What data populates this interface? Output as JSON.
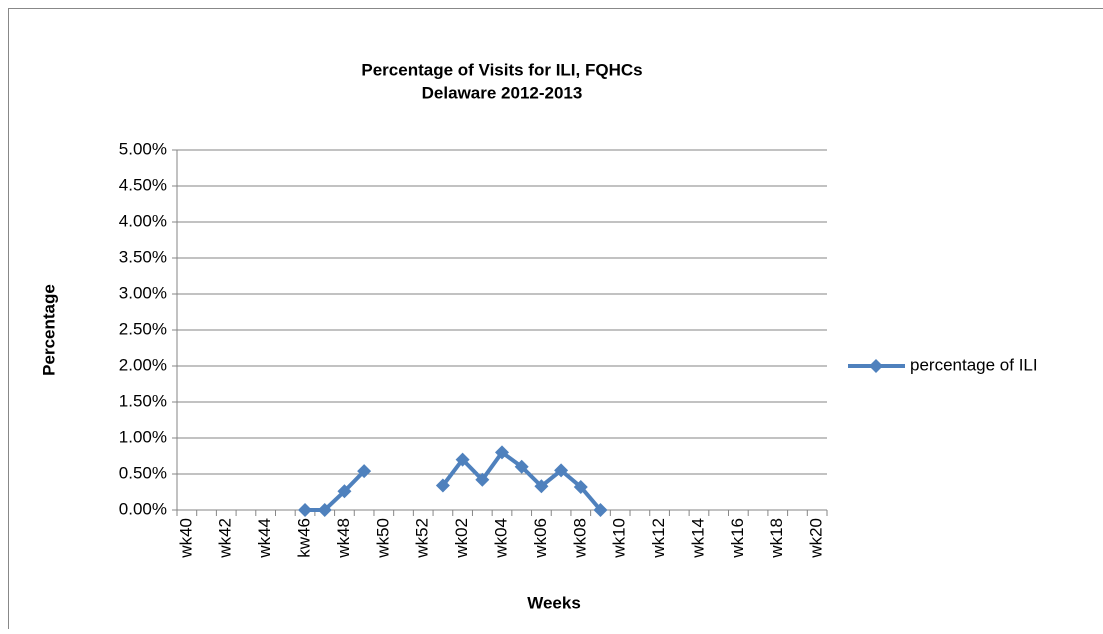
{
  "chart_data": {
    "type": "line",
    "title": "Percentage of Visits for ILI, FQHCs",
    "subtitle": "Delaware 2012-2013",
    "y_label": "Percentage",
    "x_label": "Weeks",
    "categories": [
      "wk40",
      null,
      "wk42",
      null,
      "wk44",
      null,
      "kw46",
      null,
      "wk48",
      null,
      "wk50",
      null,
      "wk52",
      null,
      "wk02",
      null,
      "wk04",
      null,
      "wk06",
      null,
      "wk08",
      null,
      "wk10",
      null,
      "wk12",
      null,
      "wk14",
      null,
      "wk16",
      null,
      "wk18",
      null,
      "wk20"
    ],
    "series": [
      {
        "name": "percentage of ILI",
        "color": "#4f81bd",
        "values": [
          null,
          null,
          null,
          null,
          null,
          null,
          0,
          0,
          0.26,
          0.54,
          null,
          null,
          null,
          0.34,
          0.7,
          0.42,
          0.8,
          0.6,
          0.33,
          0.55,
          0.32,
          0,
          null,
          null,
          null,
          null,
          null,
          null,
          null,
          null,
          null,
          null,
          null
        ]
      }
    ],
    "ylim": [
      0,
      5
    ],
    "yticks": [
      {
        "value": 0,
        "label": "0.00%"
      },
      {
        "value": 0.5,
        "label": "0.50%"
      },
      {
        "value": 1,
        "label": "1.00%"
      },
      {
        "value": 1.5,
        "label": "1.50%"
      },
      {
        "value": 2,
        "label": "2.00%"
      },
      {
        "value": 2.5,
        "label": "2.50%"
      },
      {
        "value": 3,
        "label": "3.00%"
      },
      {
        "value": 3.5,
        "label": "3.50%"
      },
      {
        "value": 4,
        "label": "4.00%"
      },
      {
        "value": 4.5,
        "label": "4.50%"
      },
      {
        "value": 5,
        "label": "5.00%"
      }
    ],
    "grid": true,
    "legend": "right"
  }
}
